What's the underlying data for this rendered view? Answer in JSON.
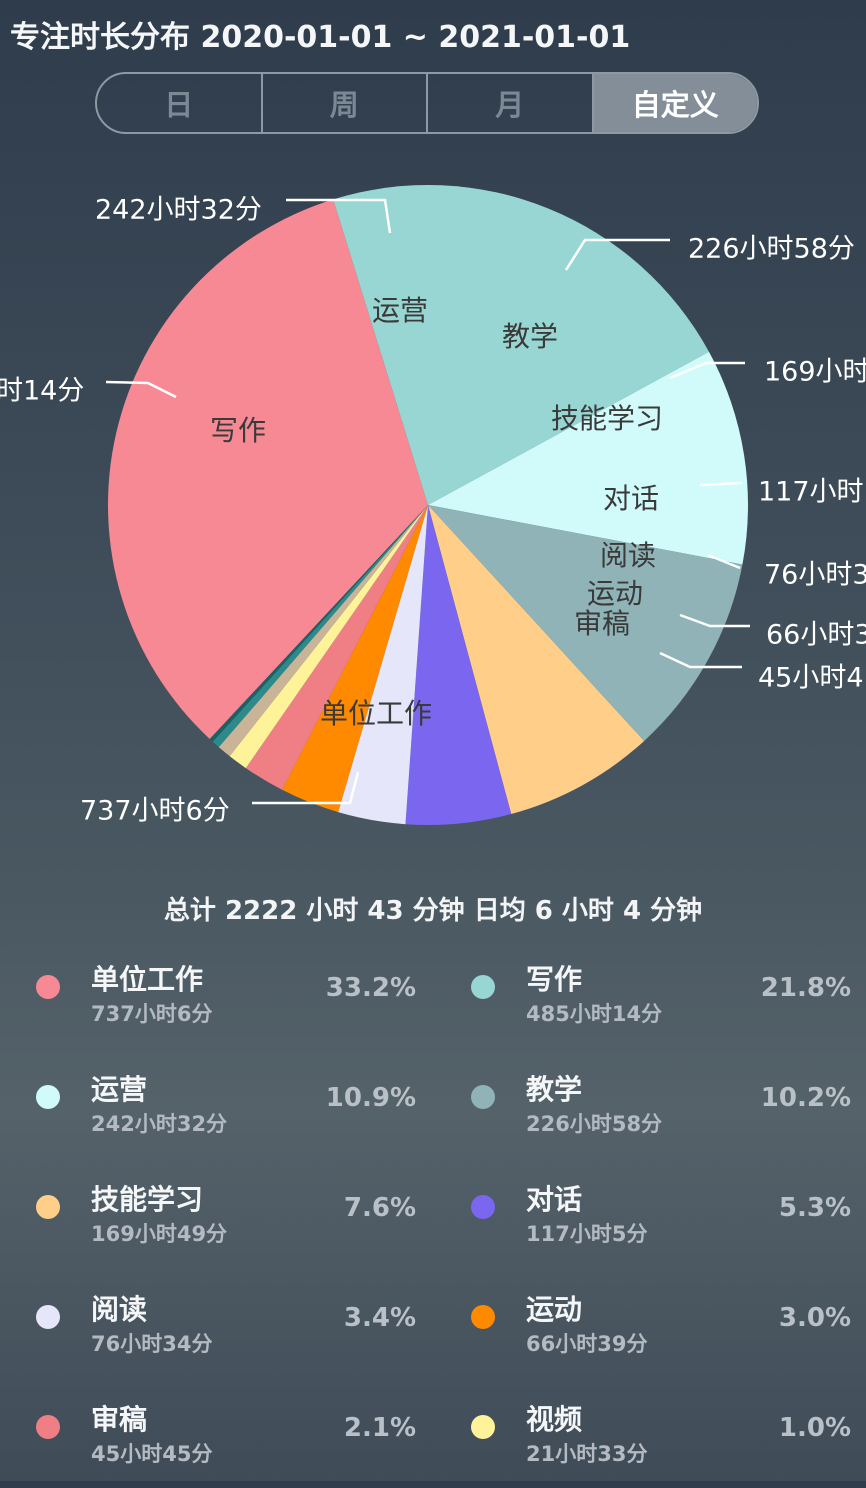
{
  "header": {
    "title": "专注时长分布 2020-01-01 ~ 2021-01-01",
    "tabs": [
      {
        "label": "日",
        "active": false
      },
      {
        "label": "周",
        "active": false
      },
      {
        "label": "月",
        "active": false
      },
      {
        "label": "自定义",
        "active": true
      }
    ]
  },
  "chart_data": {
    "type": "pie",
    "title": "",
    "slices": [
      {
        "label": "单位工作",
        "value_text": "737小时6分",
        "percent": 33.2,
        "color": "#f78995"
      },
      {
        "label": "写作",
        "value_text": "485小时14分",
        "percent": 21.8,
        "color": "#98d6d3"
      },
      {
        "label": "运营",
        "value_text": "242小时32分",
        "percent": 10.9,
        "color": "#d1fafa"
      },
      {
        "label": "教学",
        "value_text": "226小时58分",
        "percent": 10.2,
        "color": "#8fb3b6"
      },
      {
        "label": "技能学习",
        "value_text": "169小时49分",
        "percent": 7.6,
        "color": "#ffcf8a"
      },
      {
        "label": "对话",
        "value_text": "117小时5分",
        "percent": 5.3,
        "color": "#7a66ef"
      },
      {
        "label": "阅读",
        "value_text": "76小时34分",
        "percent": 3.4,
        "color": "#e6e6fb"
      },
      {
        "label": "运动",
        "value_text": "66小时39分",
        "percent": 3.0,
        "color": "#ff8a00"
      },
      {
        "label": "审稿",
        "value_text": "45小时45分",
        "percent": 2.1,
        "color": "#f07f85"
      },
      {
        "label": "视频",
        "value_text": "21小时33分",
        "percent": 1.0,
        "color": "#fff39a"
      },
      {
        "label": "",
        "value_text": "",
        "percent": 0.7,
        "color": "#c9b497"
      },
      {
        "label": "",
        "value_text": "",
        "percent": 0.4,
        "color": "#2c8a8a"
      },
      {
        "label": "",
        "value_text": "",
        "percent": 0.2,
        "color": "#1f5f66"
      }
    ],
    "outer_labels": [
      "737小时6分",
      "时14分",
      "242小时32分",
      "226小时58分",
      "169小时",
      "117小时",
      "76小时3",
      "66小时3",
      "45小时4"
    ]
  },
  "summary": {
    "text": "总计 2222 小时 43 分钟 日均 6 小时 4 分钟"
  },
  "legend": [
    {
      "name": "单位工作",
      "duration": "737小时6分",
      "percent": "33.2%",
      "color": "#f78995"
    },
    {
      "name": "写作",
      "duration": "485小时14分",
      "percent": "21.8%",
      "color": "#98d6d3"
    },
    {
      "name": "运营",
      "duration": "242小时32分",
      "percent": "10.9%",
      "color": "#d1fafa"
    },
    {
      "name": "教学",
      "duration": "226小时58分",
      "percent": "10.2%",
      "color": "#8fb3b6"
    },
    {
      "name": "技能学习",
      "duration": "169小时49分",
      "percent": "7.6%",
      "color": "#ffcf8a"
    },
    {
      "name": "对话",
      "duration": "117小时5分",
      "percent": "5.3%",
      "color": "#7a66ef"
    },
    {
      "name": "阅读",
      "duration": "76小时34分",
      "percent": "3.4%",
      "color": "#e6e6fb"
    },
    {
      "name": "运动",
      "duration": "66小时39分",
      "percent": "3.0%",
      "color": "#ff8a00"
    },
    {
      "name": "审稿",
      "duration": "45小时45分",
      "percent": "2.1%",
      "color": "#f07f85"
    },
    {
      "name": "视频",
      "duration": "21小时33分",
      "percent": "1.0%",
      "color": "#fff39a"
    }
  ]
}
